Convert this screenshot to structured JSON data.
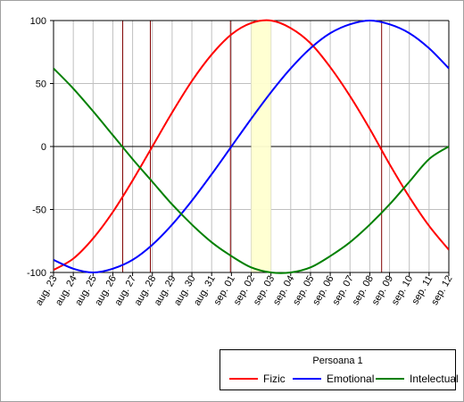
{
  "chart_data": {
    "type": "line",
    "x_tick_labels": [
      "aug. 23",
      "aug. 24",
      "aug. 25",
      "aug. 26",
      "aug. 27",
      "aug. 28",
      "aug. 29",
      "aug. 30",
      "aug. 31",
      "sep. 01",
      "sep. 02",
      "sep. 03",
      "sep. 04",
      "sep. 05",
      "sep. 06",
      "sep. 07",
      "sep. 08",
      "sep. 09",
      "sep. 10",
      "sep. 11",
      "sep. 12"
    ],
    "ylim": [
      -100,
      100
    ],
    "y_ticks": [
      -100,
      -50,
      0,
      50,
      100
    ],
    "grid": true,
    "legend": {
      "title": "Persoana 1",
      "placement": "bottom-right"
    },
    "highlight_range": [
      10.0,
      11.0
    ],
    "vertical_markers": [
      3.5,
      4.9,
      8.95,
      16.6
    ],
    "series": [
      {
        "name": "Fizic",
        "color": "#ff0000",
        "values": [
          -98,
          -89,
          -73,
          -52,
          -27,
          0,
          27,
          52,
          73,
          89,
          98,
          100,
          94,
          82,
          63,
          40,
          14,
          -14,
          -40,
          -63,
          -82
        ]
      },
      {
        "name": "Emotional",
        "color": "#0000ff",
        "values": [
          -90,
          -97,
          -100,
          -97,
          -90,
          -78,
          -62,
          -43,
          -22,
          0,
          22,
          43,
          62,
          78,
          90,
          97,
          100,
          97,
          90,
          78,
          62
        ]
      },
      {
        "name": "Intelectual",
        "color": "#008000",
        "values": [
          62,
          46,
          28,
          9,
          -10,
          -28,
          -46,
          -62,
          -76,
          -87,
          -96,
          -100,
          -100,
          -96,
          -87,
          -76,
          -62,
          -46,
          -28,
          -10,
          0
        ]
      }
    ]
  }
}
